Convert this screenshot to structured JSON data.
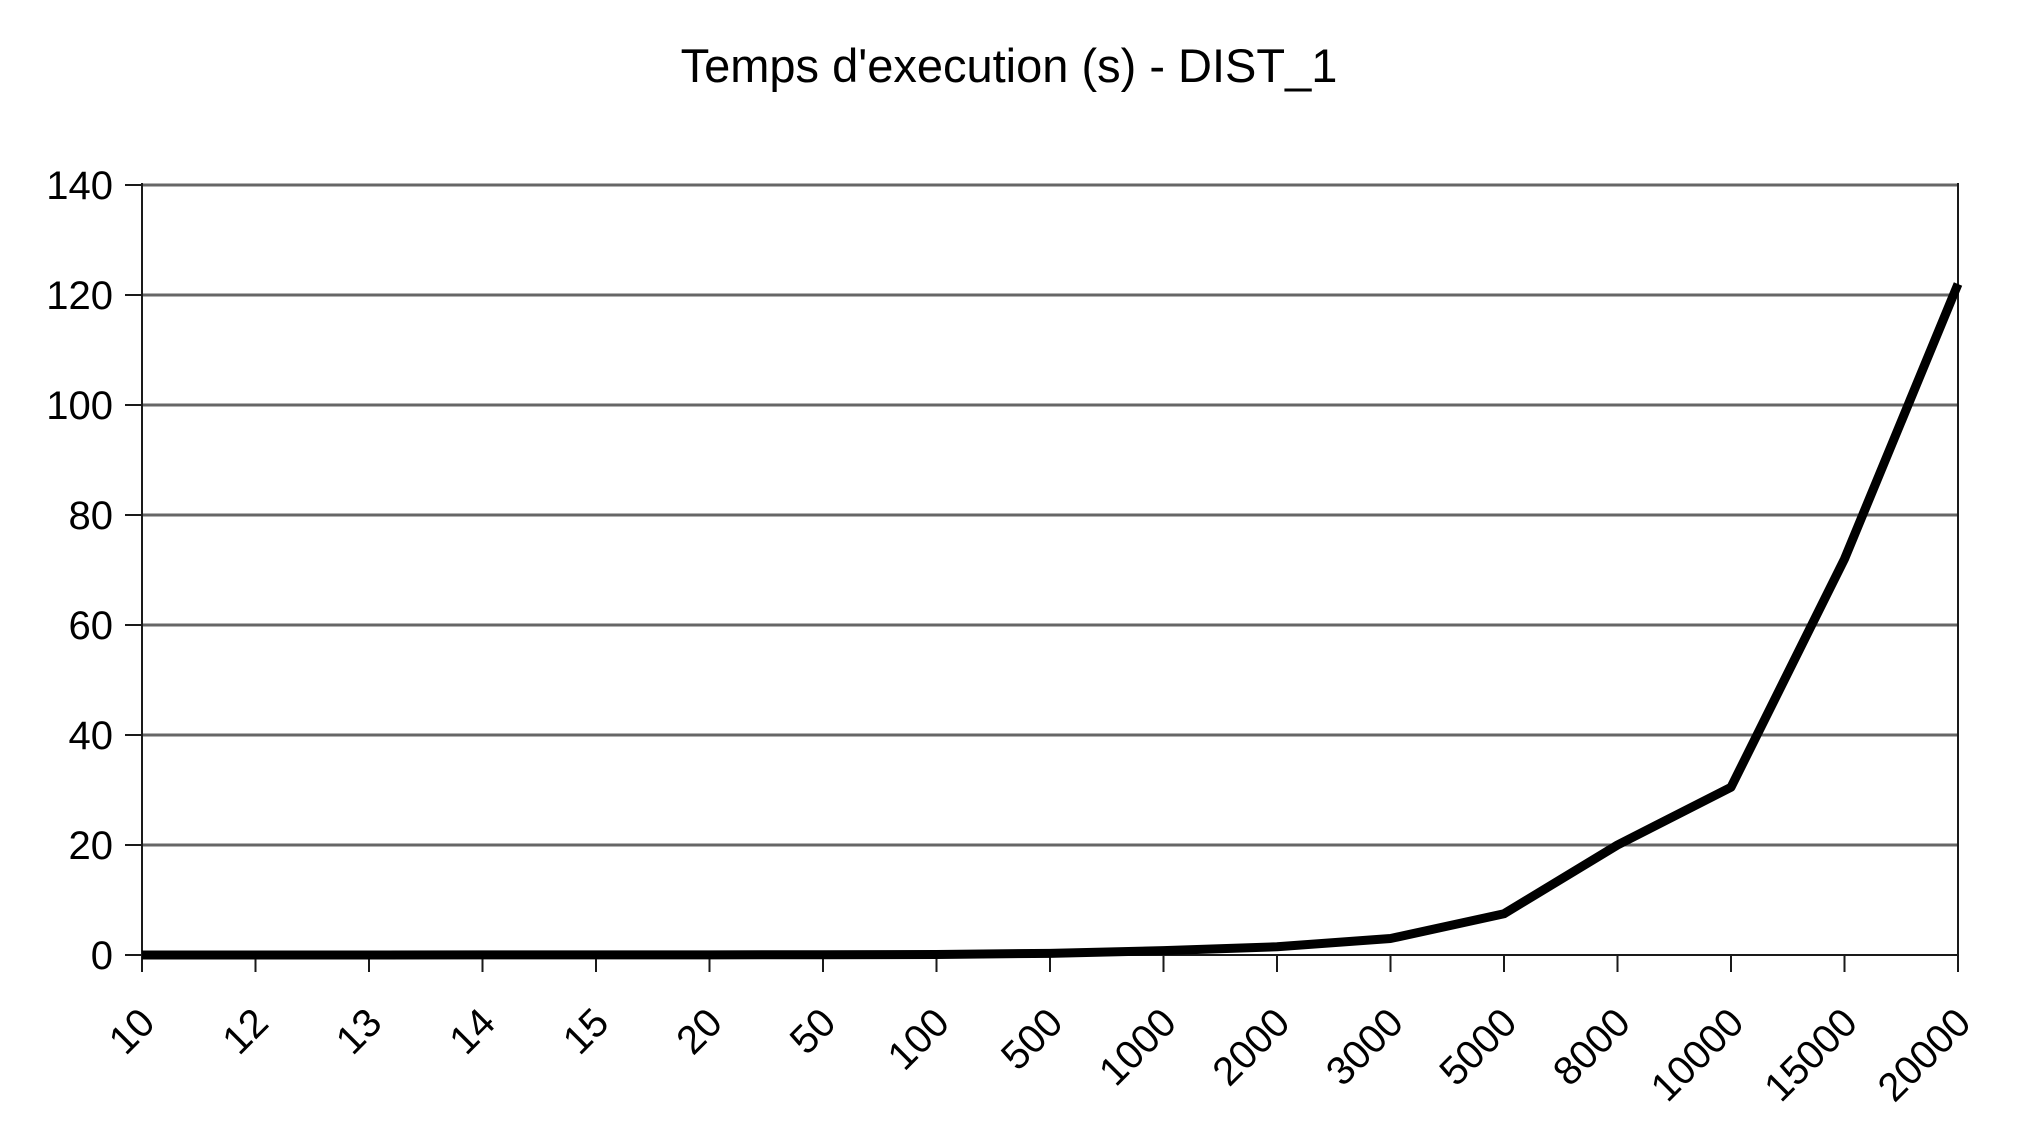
{
  "chart": {
    "title": "Temps d'execution (s) - DIST_1"
  },
  "chart_data": {
    "type": "line",
    "title": "Temps d'execution (s) - DIST_1",
    "categories": [
      "10",
      "12",
      "13",
      "14",
      "15",
      "20",
      "50",
      "100",
      "500",
      "1000",
      "2000",
      "3000",
      "5000",
      "8000",
      "10000",
      "15000",
      "20000"
    ],
    "values": [
      0.01,
      0.01,
      0.01,
      0.02,
      0.02,
      0.03,
      0.05,
      0.1,
      0.3,
      0.8,
      1.5,
      3,
      7.5,
      20,
      30.5,
      72,
      122
    ],
    "xlabel": "",
    "ylabel": "",
    "ylim": [
      0,
      140
    ],
    "ytick_step": 20,
    "ytick_labels": [
      "0",
      "20",
      "40",
      "60",
      "80",
      "100",
      "120",
      "140"
    ],
    "grid": true,
    "legend": "none",
    "x_label_rotation_deg": -45,
    "line_color": "#000000",
    "line_width": 9
  },
  "colors": {
    "background": "#ffffff",
    "grid": "#666666",
    "axis": "#1a1a1a",
    "text": "#000000"
  }
}
